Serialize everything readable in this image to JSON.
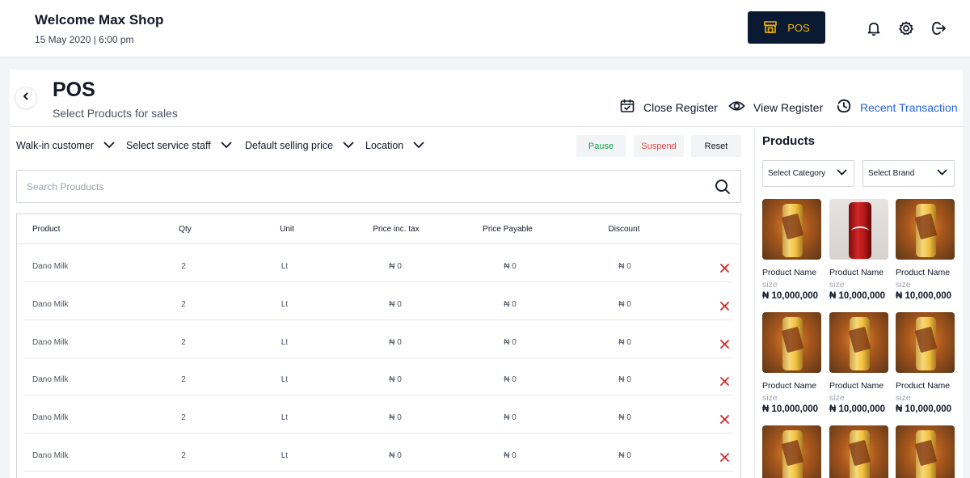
{
  "topbar": {
    "welcome": "Welcome Max Shop",
    "datetime": "15 May 2020 | 6:00 pm",
    "pos_button": "POS",
    "icons": [
      "bell-icon",
      "gear-icon",
      "logout-icon"
    ]
  },
  "page": {
    "title": "POS",
    "subtitle": "Select Products for sales",
    "actions": {
      "close_register": "Close Register",
      "view_register": "View Register",
      "recent_transaction": "Recent Transaction"
    }
  },
  "filters": {
    "customer": "Walk-in customer",
    "staff": "Select service staff",
    "price": "Default selling price",
    "location": "Location"
  },
  "buttons": {
    "pause": "Pause",
    "suspend": "Suspend",
    "reset": "Reset"
  },
  "search": {
    "placeholder": "Search Prouducts",
    "value": ""
  },
  "table": {
    "headers": [
      "Product",
      "Qty",
      "Unit",
      "Price inc. tax",
      "Price Payable",
      "Discount"
    ],
    "rows": [
      {
        "product": "Dano Milk",
        "qty": "2",
        "unit": "Lt",
        "price_inc_tax": "₦ 0",
        "price_payable": "₦ 0",
        "discount": "₦ 0"
      },
      {
        "product": "Dano Milk",
        "qty": "2",
        "unit": "Lt",
        "price_inc_tax": "₦ 0",
        "price_payable": "₦ 0",
        "discount": "₦ 0"
      },
      {
        "product": "Dano Milk",
        "qty": "2",
        "unit": "Lt",
        "price_inc_tax": "₦ 0",
        "price_payable": "₦ 0",
        "discount": "₦ 0"
      },
      {
        "product": "Dano Milk",
        "qty": "2",
        "unit": "Lt",
        "price_inc_tax": "₦ 0",
        "price_payable": "₦ 0",
        "discount": "₦ 0"
      },
      {
        "product": "Dano Milk",
        "qty": "2",
        "unit": "Lt",
        "price_inc_tax": "₦ 0",
        "price_payable": "₦ 0",
        "discount": "₦ 0"
      },
      {
        "product": "Dano Milk",
        "qty": "2",
        "unit": "Lt",
        "price_inc_tax": "₦ 0",
        "price_payable": "₦ 0",
        "discount": "₦ 0"
      }
    ]
  },
  "products_panel": {
    "title": "Products",
    "category_select": "Select Category",
    "brand_select": "Select Brand",
    "items": [
      {
        "name": "Product Name",
        "size": "size",
        "price": "₦ 10,000,000",
        "image": "orange-can"
      },
      {
        "name": "Product Name",
        "size": "size",
        "price": "₦ 10,000,000",
        "image": "red-can"
      },
      {
        "name": "Product Name",
        "size": "size",
        "price": "₦ 10,000,000",
        "image": "orange-can"
      },
      {
        "name": "Product Name",
        "size": "size",
        "price": "₦ 10,000,000",
        "image": "orange-can"
      },
      {
        "name": "Product Name",
        "size": "size",
        "price": "₦ 10,000,000",
        "image": "orange-can"
      },
      {
        "name": "Product Name",
        "size": "size",
        "price": "₦ 10,000,000",
        "image": "orange-can"
      },
      {
        "name": "",
        "size": "",
        "price": "",
        "image": "orange-can"
      },
      {
        "name": "",
        "size": "",
        "price": "",
        "image": "orange-can"
      },
      {
        "name": "",
        "size": "",
        "price": "",
        "image": "orange-can"
      }
    ]
  },
  "colors": {
    "navy": "#0b1a33",
    "gold": "#f5b400",
    "link_blue": "#2563eb",
    "pause_green": "#16a34a",
    "suspend_red": "#ef4444",
    "delete_red": "#dc2626"
  }
}
